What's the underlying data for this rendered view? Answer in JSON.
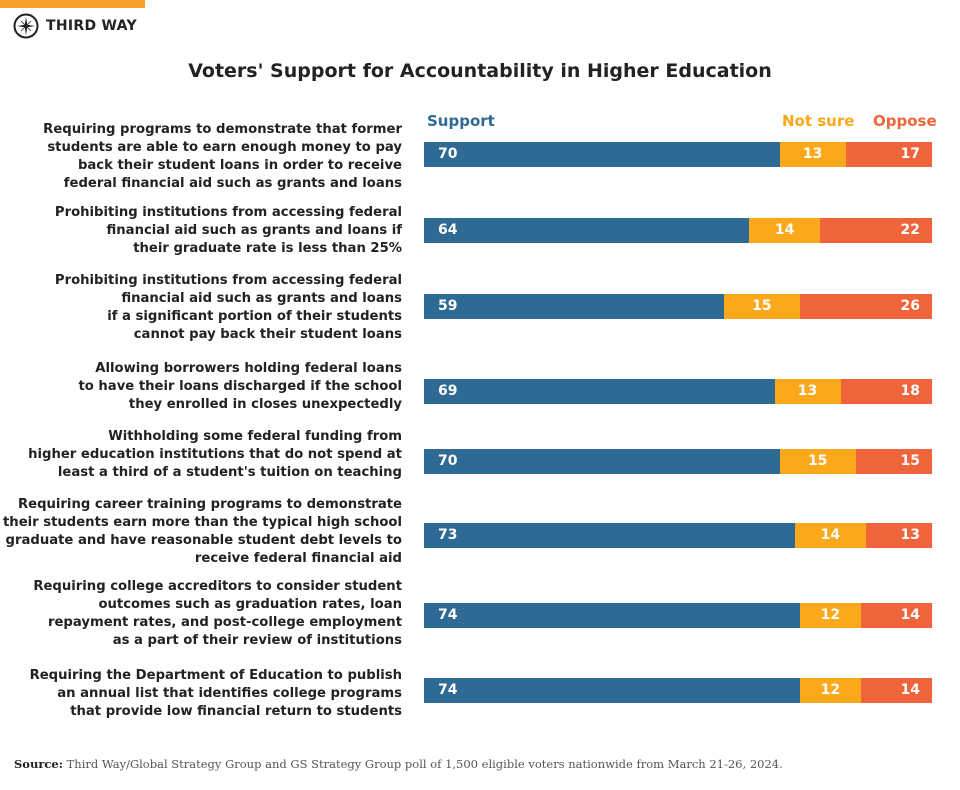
{
  "logo": {
    "text": "THIRD WAY",
    "icon": "compass-star-icon"
  },
  "chart_data": {
    "type": "bar",
    "orientation": "horizontal-stacked-100",
    "title": "Voters' Support for Accountability in Higher Education",
    "colors": {
      "Support": "#2e6a94",
      "Not sure": "#fba81a",
      "Oppose": "#f0643c"
    },
    "categories": [
      "Requiring programs to demonstrate that former\nstudents are able to earn enough money to pay\nback their student loans in order to receive\nfederal financial aid such as grants and loans",
      "Prohibiting institutions from accessing federal\nfinancial aid such as grants and loans if\ntheir graduate rate is less than 25%",
      "Prohibiting institutions from accessing federal\nfinancial aid such as grants and loans\nif a significant portion of their students\ncannot pay back their student loans",
      "Allowing borrowers holding federal loans\nto have their loans discharged if the school\nthey enrolled in closes unexpectedly",
      "Withholding some federal funding from\nhigher education institutions that do not spend at\nleast a third of a student's tuition on teaching",
      "Requiring career training programs to demonstrate\ntheir students earn more than the typical high school\ngraduate and have reasonable student debt levels to\nreceive federal financial aid",
      "Requiring college accreditors to consider student\noutcomes such as graduation rates, loan\nrepayment rates, and post-college employment\nas a part of their review of institutions",
      "Requiring the Department of Education to publish\nan annual list that identifies college programs\nthat provide low financial return to students"
    ],
    "series": [
      {
        "name": "Support",
        "values": [
          70,
          64,
          59,
          69,
          70,
          73,
          74,
          74
        ]
      },
      {
        "name": "Not sure",
        "values": [
          13,
          14,
          15,
          13,
          15,
          14,
          12,
          12
        ]
      },
      {
        "name": "Oppose",
        "values": [
          17,
          22,
          26,
          18,
          15,
          13,
          14,
          14
        ]
      }
    ],
    "legend": "top"
  },
  "source": {
    "label": "Source:",
    "text": " Third Way/Global Strategy Group and GS Strategy Group poll of 1,500 eligible voters nationwide from March 21-26, 2024."
  }
}
